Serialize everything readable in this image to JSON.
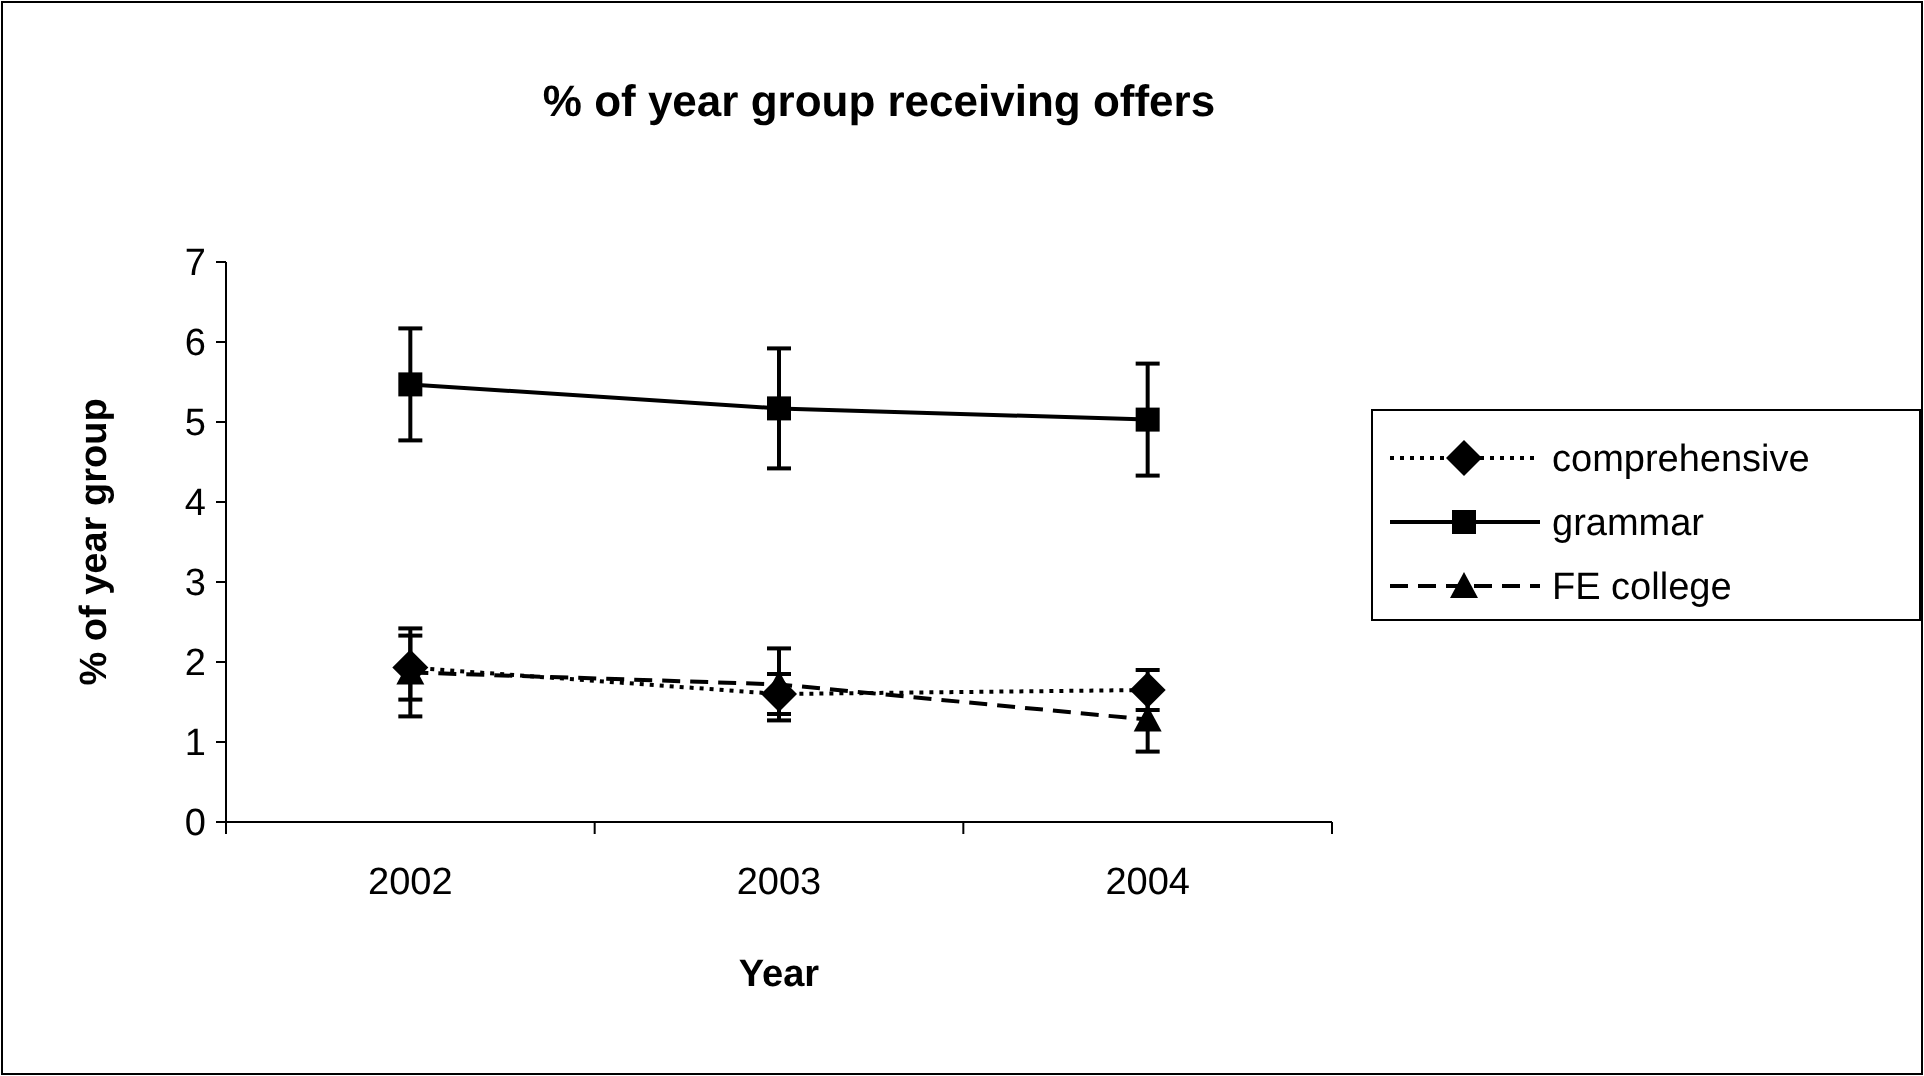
{
  "chart_data": {
    "type": "line",
    "title": "% of year group receiving offers",
    "xlabel": "Year",
    "ylabel": "% of year group",
    "categories": [
      "2002",
      "2003",
      "2004"
    ],
    "series": [
      {
        "name": "comprehensive",
        "color": "#000000",
        "values": [
          1.93,
          1.6,
          1.65
        ],
        "errors": [
          0.4,
          0.25,
          0.25
        ],
        "marker": "diamond",
        "line_style": "dotted"
      },
      {
        "name": "grammar",
        "color": "#000000",
        "values": [
          5.47,
          5.17,
          5.03
        ],
        "errors": [
          0.7,
          0.75,
          0.7
        ],
        "marker": "square",
        "line_style": "solid"
      },
      {
        "name": "FE college",
        "color": "#000000",
        "values": [
          1.87,
          1.72,
          1.28
        ],
        "errors": [
          0.55,
          0.45,
          0.4
        ],
        "marker": "triangle",
        "line_style": "dashed"
      }
    ],
    "ylim": [
      0,
      7
    ],
    "yticks": [
      0,
      1,
      2,
      3,
      4,
      5,
      6,
      7
    ],
    "grid": false,
    "legend": "right"
  }
}
